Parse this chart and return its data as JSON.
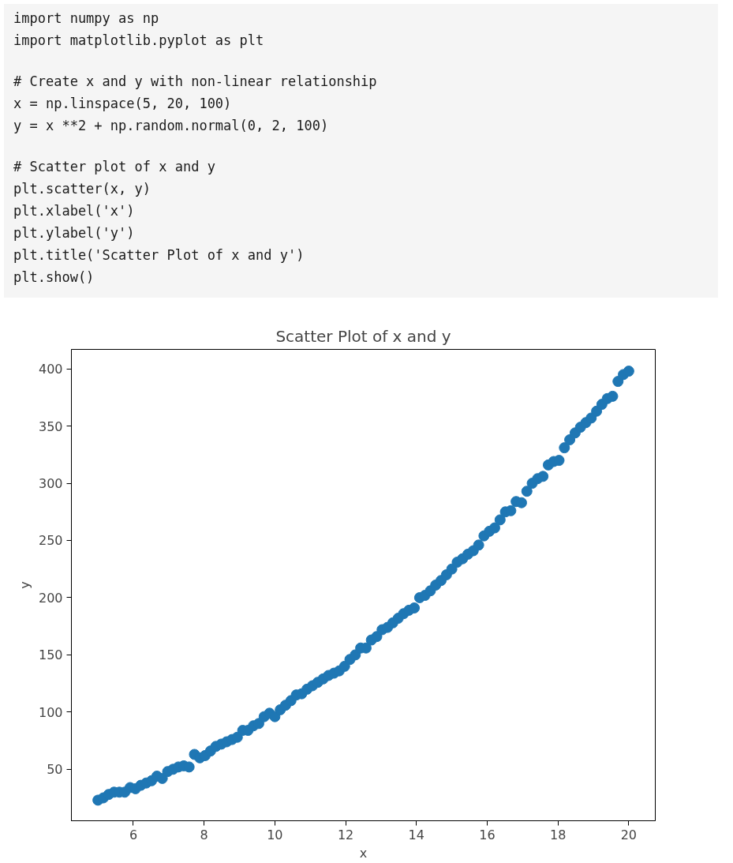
{
  "chart_data": {
    "type": "scatter",
    "title": "Scatter Plot of x and y",
    "xlabel": "x",
    "ylabel": "y",
    "annotations": [
      "import numpy as np\nimport matplotlib.pyplot as plt",
      "# Create x and y with non-linear relationship\nx = np.linspace(5, 20, 100)\ny = x **2 + np.random.normal(0, 2, 100)",
      "# Scatter plot of x and y\nplt.scatter(x, y)\nplt.xlabel('x')\nplt.ylabel('y')\nplt.title('Scatter Plot of x and y')\nplt.show()"
    ],
    "x": [
      5.0,
      5.152,
      5.303,
      5.455,
      5.606,
      5.758,
      5.909,
      6.061,
      6.212,
      6.364,
      6.515,
      6.667,
      6.818,
      6.97,
      7.121,
      7.273,
      7.424,
      7.576,
      7.727,
      7.879,
      8.03,
      8.182,
      8.333,
      8.485,
      8.636,
      8.788,
      8.939,
      9.091,
      9.242,
      9.394,
      9.545,
      9.697,
      9.848,
      10.0,
      10.152,
      10.303,
      10.455,
      10.606,
      10.758,
      10.909,
      11.061,
      11.212,
      11.364,
      11.515,
      11.667,
      11.818,
      11.97,
      12.121,
      12.273,
      12.424,
      12.576,
      12.727,
      12.879,
      13.03,
      13.182,
      13.333,
      13.485,
      13.636,
      13.788,
      13.939,
      14.091,
      14.242,
      14.394,
      14.545,
      14.697,
      14.848,
      15.0,
      15.152,
      15.303,
      15.455,
      15.606,
      15.758,
      15.909,
      16.061,
      16.212,
      16.364,
      16.515,
      16.667,
      16.818,
      16.97,
      17.121,
      17.273,
      17.424,
      17.576,
      17.727,
      17.879,
      18.03,
      18.182,
      18.333,
      18.485,
      18.636,
      18.788,
      18.939,
      19.091,
      19.242,
      19.394,
      19.545,
      19.697,
      19.848,
      20.0
    ],
    "series": [
      {
        "color": "#1f77b4",
        "values": [
          23,
          25,
          28,
          30,
          30,
          30,
          34,
          33,
          36,
          38,
          40,
          44,
          42,
          48,
          50,
          52,
          53,
          52,
          63,
          60,
          62,
          66,
          70,
          72,
          74,
          76,
          78,
          84,
          84,
          88,
          90,
          96,
          99,
          96,
          102,
          106,
          110,
          115,
          116,
          120,
          123,
          126,
          129,
          132,
          134,
          136,
          140,
          146,
          150,
          156,
          156,
          163,
          166,
          172,
          174,
          178,
          182,
          186,
          189,
          191,
          200,
          202,
          206,
          211,
          215,
          220,
          225,
          231,
          234,
          238,
          241,
          246,
          254,
          258,
          261,
          268,
          275,
          276,
          284,
          283,
          293,
          300,
          304,
          306,
          316,
          319,
          320,
          331,
          338,
          344,
          349,
          353,
          357,
          363,
          369,
          374,
          376,
          389,
          395,
          398
        ]
      }
    ],
    "marker": "circle",
    "xlim": [
      4.25,
      20.75
    ],
    "ylim": [
      5,
      417
    ],
    "xticks": [
      6,
      8,
      10,
      12,
      14,
      16,
      18,
      20
    ],
    "yticks": [
      50,
      100,
      150,
      200,
      250,
      300,
      350,
      400
    ],
    "grid": false
  }
}
